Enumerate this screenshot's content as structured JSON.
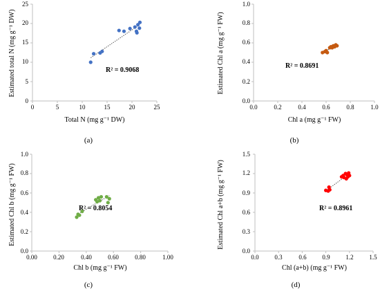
{
  "chart_data": [
    {
      "type": "scatter",
      "panel_label": "(a)",
      "color": "#4472c4",
      "xlabel": "Total N (mg g⁻¹ DW)",
      "ylabel": "Estimated total N (mg g⁻¹ DW)",
      "xlim": [
        0,
        25
      ],
      "ylim": [
        0,
        25
      ],
      "xticks": [
        "0",
        "5",
        "10",
        "15",
        "20",
        "25"
      ],
      "yticks": [
        "0",
        "5",
        "10",
        "15",
        "20",
        "25"
      ],
      "r2_text": "R² = 0.9068",
      "trendline": true,
      "grid": false,
      "x": [
        11.7,
        12.3,
        13.6,
        14.0,
        17.4,
        18.4,
        19.6,
        20.6,
        20.9,
        21.0,
        21.2,
        21.6,
        21.5
      ],
      "y": [
        10.0,
        12.2,
        12.4,
        12.8,
        18.2,
        18.0,
        18.7,
        19.1,
        18.0,
        17.6,
        19.7,
        20.3,
        18.8
      ]
    },
    {
      "type": "scatter",
      "panel_label": "(b)",
      "color": "#c55a11",
      "xlabel": "Chl a (mg g⁻¹ FW)",
      "ylabel": "Estimated Chl a (mg g⁻¹ FW)",
      "xlim": [
        0,
        1
      ],
      "ylim": [
        0,
        1
      ],
      "xticks": [
        "0.0",
        "0.2",
        "0.4",
        "0.6",
        "0.8",
        "1.0"
      ],
      "yticks": [
        "0.0",
        "0.2",
        "0.4",
        "0.6",
        "0.8",
        "1.0"
      ],
      "r2_text": "R² = 0.8691",
      "trendline": true,
      "grid": false,
      "x": [
        0.57,
        0.59,
        0.6,
        0.61,
        0.63,
        0.64,
        0.65,
        0.66,
        0.67,
        0.68,
        0.69
      ],
      "y": [
        0.5,
        0.51,
        0.52,
        0.5,
        0.55,
        0.56,
        0.55,
        0.57,
        0.56,
        0.58,
        0.57
      ]
    },
    {
      "type": "scatter",
      "panel_label": "(c)",
      "color": "#70ad47",
      "xlabel": "Chl b (mg g⁻¹ FW)",
      "ylabel": "Estimated Chl b (mg g⁻¹ FW)",
      "xlim": [
        0,
        1
      ],
      "ylim": [
        0,
        1
      ],
      "xticks": [
        "0.00",
        "0.20",
        "0.40",
        "0.60",
        "0.80",
        "1.00"
      ],
      "yticks": [
        "0.0",
        "0.2",
        "0.4",
        "0.6",
        "0.8",
        "1.0"
      ],
      "r2_text": "R² = 0.8054",
      "trendline": true,
      "grid": false,
      "x": [
        0.33,
        0.34,
        0.35,
        0.37,
        0.47,
        0.48,
        0.49,
        0.5,
        0.51,
        0.55,
        0.56,
        0.57
      ],
      "y": [
        0.35,
        0.38,
        0.37,
        0.41,
        0.53,
        0.51,
        0.55,
        0.52,
        0.56,
        0.56,
        0.5,
        0.54
      ]
    },
    {
      "type": "scatter",
      "panel_label": "(d)",
      "color": "#ff0000",
      "xlabel": "Chl (a+b) (mg g⁻¹ FW)",
      "ylabel": "Estimated Chl a+b (mg g⁻¹ FW)",
      "xlim": [
        0,
        1.5
      ],
      "ylim": [
        0,
        1.5
      ],
      "xticks": [
        "0.0",
        "0.3",
        "0.6",
        "0.9",
        "1.2",
        "1.5"
      ],
      "yticks": [
        "0.0",
        "0.3",
        "0.6",
        "0.9",
        "1.2",
        "1.5"
      ],
      "r2_text": "R² = 0.8961",
      "trendline": true,
      "grid": false,
      "x": [
        0.9,
        0.93,
        0.94,
        0.95,
        1.1,
        1.12,
        1.13,
        1.15,
        1.16,
        1.17,
        1.18,
        1.19,
        1.2
      ],
      "y": [
        0.94,
        0.93,
        0.99,
        0.95,
        1.15,
        1.17,
        1.14,
        1.2,
        1.12,
        1.18,
        1.15,
        1.21,
        1.17
      ]
    }
  ]
}
